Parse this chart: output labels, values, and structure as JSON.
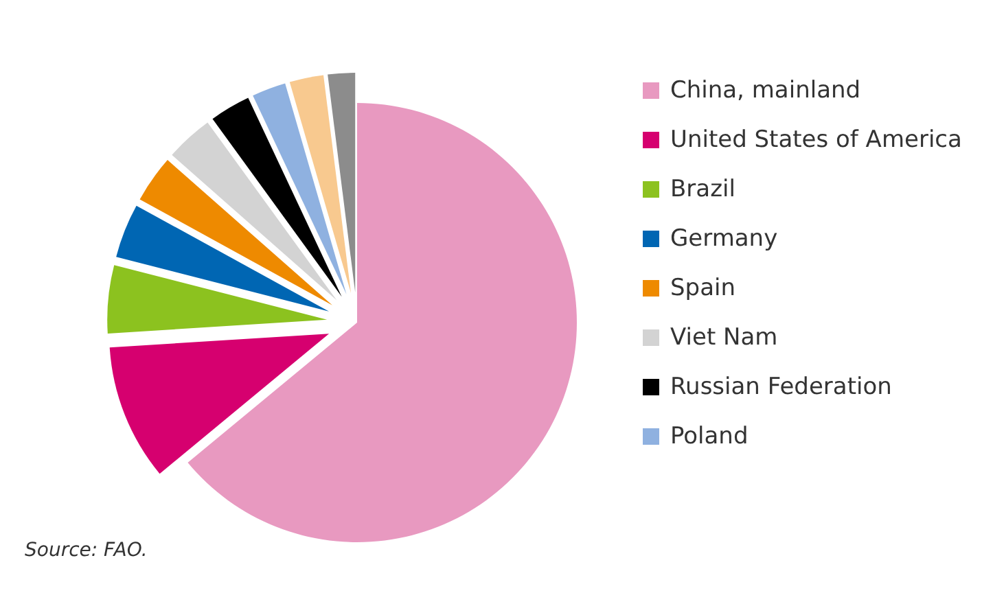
{
  "chart_data": {
    "type": "pie",
    "categories": [
      "China, mainland",
      "United States of America",
      "Brazil",
      "Germany",
      "Spain",
      "Viet Nam",
      "Russian Federation",
      "Poland",
      null,
      null
    ],
    "values": [
      64,
      10,
      5,
      4,
      3.5,
      3.5,
      3,
      2.5,
      2.5,
      2
    ],
    "colors": [
      "#e899c0",
      "#d6006f",
      "#8cc21f",
      "#0066b3",
      "#ee8a00",
      "#d3d3d3",
      "#000000",
      "#8fb1e0",
      "#f8c98f",
      "#8c8c8c"
    ],
    "legend": "right",
    "annotations": [
      "Source: FAO."
    ]
  }
}
